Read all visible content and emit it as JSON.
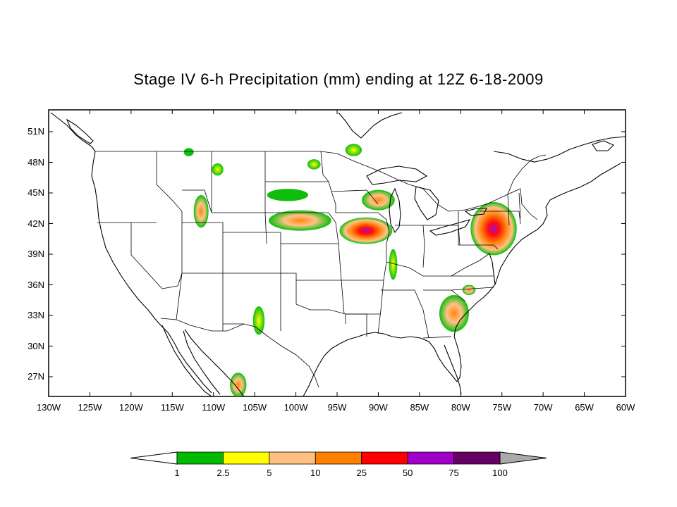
{
  "title": "Stage IV 6-h Precipitation (mm) ending at 12Z 6-18-2009",
  "map": {
    "lon_range": [
      -130,
      -60
    ],
    "lat_range": [
      25,
      53
    ],
    "y_ticks": [
      "51N",
      "48N",
      "45N",
      "42N",
      "39N",
      "36N",
      "33N",
      "30N",
      "27N"
    ],
    "y_tick_values": [
      51,
      48,
      45,
      42,
      39,
      36,
      33,
      30,
      27
    ],
    "x_ticks": [
      "130W",
      "125W",
      "120W",
      "115W",
      "110W",
      "105W",
      "100W",
      "95W",
      "90W",
      "85W",
      "80W",
      "75W",
      "70W",
      "65W",
      "60W"
    ],
    "x_tick_values": [
      -130,
      -125,
      -120,
      -115,
      -110,
      -105,
      -100,
      -95,
      -90,
      -85,
      -80,
      -75,
      -70,
      -65,
      -60
    ],
    "land_line_color": "#000000",
    "frame_color": "#000000",
    "grid": "off",
    "minor_ticks": "dashed",
    "regions": [
      {
        "name": "northern-plains-band",
        "lon": -99.5,
        "lat": 42.3,
        "rx": 3.8,
        "ry": 1.0,
        "level": 3
      },
      {
        "name": "iowa-illinois-band",
        "lon": -91.5,
        "lat": 41.3,
        "rx": 3.2,
        "ry": 1.3,
        "level": 4
      },
      {
        "name": "northeast-cluster",
        "lon": -76.0,
        "lat": 41.5,
        "rx": 2.8,
        "ry": 2.6,
        "level": 4
      },
      {
        "name": "southeast-cluster",
        "lon": -80.8,
        "lat": 33.2,
        "rx": 1.8,
        "ry": 1.8,
        "level": 3
      },
      {
        "name": "wisconsin-cluster",
        "lon": -90.0,
        "lat": 44.3,
        "rx": 2.0,
        "ry": 1.0,
        "level": 3
      },
      {
        "name": "idaho-montana-cluster",
        "lon": -111.5,
        "lat": 43.2,
        "rx": 0.9,
        "ry": 1.6,
        "level": 3
      },
      {
        "name": "new-mexico-band",
        "lon": -104.5,
        "lat": 32.5,
        "rx": 0.7,
        "ry": 1.4,
        "level": 2
      },
      {
        "name": "mexico-cluster",
        "lon": -107.0,
        "lat": 26.2,
        "rx": 1.0,
        "ry": 1.2,
        "level": 3
      },
      {
        "name": "north-dakota-cluster",
        "lon": -97.8,
        "lat": 47.8,
        "rx": 0.8,
        "ry": 0.5,
        "level": 2
      },
      {
        "name": "manitoba-cluster",
        "lon": -93.0,
        "lat": 49.2,
        "rx": 1.0,
        "ry": 0.6,
        "level": 2
      },
      {
        "name": "alberta-cluster",
        "lon": -113.0,
        "lat": 49.0,
        "rx": 0.6,
        "ry": 0.4,
        "level": 1
      },
      {
        "name": "montana-cluster",
        "lon": -109.5,
        "lat": 47.3,
        "rx": 0.7,
        "ry": 0.6,
        "level": 2
      },
      {
        "name": "south-dakota-cluster",
        "lon": -101.0,
        "lat": 44.8,
        "rx": 2.5,
        "ry": 0.6,
        "level": 1
      },
      {
        "name": "kentucky-cluster",
        "lon": -88.2,
        "lat": 38.0,
        "rx": 0.5,
        "ry": 1.5,
        "level": 2
      },
      {
        "name": "carolina-coast-cluster",
        "lon": -79.0,
        "lat": 35.5,
        "rx": 0.8,
        "ry": 0.5,
        "level": 3
      }
    ]
  },
  "colorbar": {
    "bounds": [
      "1",
      "2.5",
      "5",
      "10",
      "25",
      "50",
      "75",
      "100"
    ],
    "colors": [
      "#00bb00",
      "#ffff00",
      "#ffbf80",
      "#ff8000",
      "#ff0000",
      "#a000c8",
      "#640064"
    ],
    "under_color": "#ffffff",
    "over_color": "#aaaaaa"
  }
}
